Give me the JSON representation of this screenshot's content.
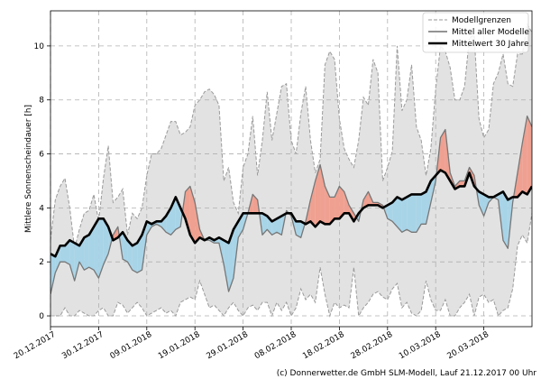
{
  "chart_data": {
    "type": "line",
    "ylabel": "Mittlere Sonnenscheindauer [h]",
    "xlabel": "",
    "ylim": [
      -0.4,
      11.3
    ],
    "x_days": 101,
    "yticks": [
      0,
      2,
      4,
      6,
      8,
      10
    ],
    "xticks": [
      {
        "day": 0,
        "label": "20.12.2017"
      },
      {
        "day": 10,
        "label": "30.12.2017"
      },
      {
        "day": 20,
        "label": "09.01.2018"
      },
      {
        "day": 30,
        "label": "19.01.2018"
      },
      {
        "day": 40,
        "label": "29.01.2018"
      },
      {
        "day": 50,
        "label": "08.02.2018"
      },
      {
        "day": 60,
        "label": "18.02.2018"
      },
      {
        "day": 70,
        "label": "28.02.2018"
      },
      {
        "day": 80,
        "label": "10.03.2018"
      },
      {
        "day": 90,
        "label": "20.03.2018"
      }
    ],
    "grid": true,
    "legend": {
      "position": "top-right",
      "entries": [
        "Modellgrenzen",
        "Mittel aller Modelle",
        "Mittelwert 30 Jahre"
      ]
    },
    "series": [
      {
        "name": "Modellgrenzen (max)",
        "x": [
          0,
          1,
          2,
          3,
          4,
          5,
          6,
          7,
          8,
          9,
          10,
          11,
          12,
          13,
          14,
          15,
          16,
          17,
          18,
          19,
          20,
          21,
          22,
          23,
          24,
          25,
          26,
          27,
          28,
          29,
          30,
          31,
          32,
          33,
          34,
          35,
          36,
          37,
          38,
          39,
          40,
          41,
          42,
          43,
          44,
          45,
          46,
          47,
          48,
          49,
          50,
          51,
          52,
          53,
          54,
          55,
          56,
          57,
          58,
          59,
          60,
          61,
          62,
          63,
          64,
          65,
          66,
          67,
          68,
          69,
          70,
          71,
          72,
          73,
          74,
          75,
          76,
          77,
          78,
          79,
          80,
          81,
          82,
          83,
          84,
          85,
          86,
          87,
          88,
          89,
          90,
          91,
          92,
          93,
          94,
          95,
          96,
          97,
          98,
          99,
          100
        ],
        "y": [
          2.8,
          4.3,
          4.8,
          5.1,
          4.0,
          2.5,
          3.2,
          3.8,
          3.9,
          4.5,
          3.5,
          5.1,
          6.3,
          4.2,
          4.4,
          4.7,
          3.0,
          3.8,
          3.6,
          4.0,
          5.2,
          6.0,
          6.0,
          6.2,
          6.7,
          7.2,
          7.2,
          6.7,
          6.8,
          7.0,
          7.8,
          8.0,
          8.3,
          8.4,
          8.2,
          7.8,
          5.0,
          5.5,
          4.2,
          3.8,
          5.5,
          6.0,
          7.4,
          5.2,
          6.5,
          8.3,
          6.5,
          7.5,
          8.5,
          8.6,
          6.5,
          6.0,
          7.5,
          8.5,
          6.5,
          5.3,
          5.8,
          9.3,
          9.8,
          9.5,
          7.3,
          6.2,
          5.8,
          5.5,
          6.5,
          8.1,
          7.8,
          9.5,
          9.0,
          5.0,
          5.5,
          6.1,
          10.0,
          7.6,
          8.0,
          9.3,
          7.0,
          6.5,
          5.2,
          6.2,
          8.4,
          10.0,
          9.8,
          9.2,
          8.0,
          8.0,
          8.5,
          10.3,
          10.4,
          7.3,
          6.6,
          6.9,
          8.6,
          9.0,
          9.7,
          8.6,
          8.5,
          9.7,
          9.7,
          10.8,
          10.5
        ]
      },
      {
        "name": "Modellgrenzen (min)",
        "x": [
          0,
          1,
          2,
          3,
          4,
          5,
          6,
          7,
          8,
          9,
          10,
          11,
          12,
          13,
          14,
          15,
          16,
          17,
          18,
          19,
          20,
          21,
          22,
          23,
          24,
          25,
          26,
          27,
          28,
          29,
          30,
          31,
          32,
          33,
          34,
          35,
          36,
          37,
          38,
          39,
          40,
          41,
          42,
          43,
          44,
          45,
          46,
          47,
          48,
          49,
          50,
          51,
          52,
          53,
          54,
          55,
          56,
          57,
          58,
          59,
          60,
          61,
          62,
          63,
          64,
          65,
          66,
          67,
          68,
          69,
          70,
          71,
          72,
          73,
          74,
          75,
          76,
          77,
          78,
          79,
          80,
          81,
          82,
          83,
          84,
          85,
          86,
          87,
          88,
          89,
          90,
          91,
          92,
          93,
          94,
          95,
          96,
          97,
          98,
          99,
          100
        ],
        "y": [
          0.0,
          0.0,
          0.0,
          0.3,
          0.0,
          0.0,
          0.2,
          0.1,
          0.0,
          0.0,
          0.2,
          0.3,
          0.0,
          0.0,
          0.5,
          0.4,
          0.1,
          0.3,
          0.5,
          0.3,
          0.0,
          0.1,
          0.2,
          0.3,
          0.1,
          0.2,
          0.0,
          0.5,
          0.6,
          0.7,
          0.6,
          1.3,
          0.8,
          0.3,
          0.4,
          0.2,
          0.0,
          0.3,
          0.5,
          0.2,
          0.0,
          0.3,
          0.4,
          0.2,
          0.5,
          0.5,
          0.0,
          0.5,
          0.2,
          0.5,
          0.0,
          0.3,
          1.0,
          0.6,
          0.8,
          0.5,
          1.8,
          0.8,
          0.0,
          0.5,
          0.3,
          0.4,
          0.3,
          1.8,
          0.0,
          0.3,
          0.5,
          0.8,
          0.9,
          0.7,
          0.6,
          1.0,
          1.2,
          0.3,
          0.5,
          0.1,
          0.0,
          0.2,
          1.3,
          0.6,
          0.2,
          0.2,
          0.6,
          0.0,
          0.0,
          0.3,
          0.5,
          0.8,
          0.0,
          0.7,
          0.8,
          0.5,
          0.6,
          0.0,
          0.2,
          0.3,
          1.0,
          2.6,
          3.0,
          2.7,
          3.8
        ]
      },
      {
        "name": "Mittel aller Modelle",
        "x": [
          0,
          1,
          2,
          3,
          4,
          5,
          6,
          7,
          8,
          9,
          10,
          11,
          12,
          13,
          14,
          15,
          16,
          17,
          18,
          19,
          20,
          21,
          22,
          23,
          24,
          25,
          26,
          27,
          28,
          29,
          30,
          31,
          32,
          33,
          34,
          35,
          36,
          37,
          38,
          39,
          40,
          41,
          42,
          43,
          44,
          45,
          46,
          47,
          48,
          49,
          50,
          51,
          52,
          53,
          54,
          55,
          56,
          57,
          58,
          59,
          60,
          61,
          62,
          63,
          64,
          65,
          66,
          67,
          68,
          69,
          70,
          71,
          72,
          73,
          74,
          75,
          76,
          77,
          78,
          79,
          80,
          81,
          82,
          83,
          84,
          85,
          86,
          87,
          88,
          89,
          90,
          91,
          92,
          93,
          94,
          95,
          96,
          97,
          98,
          99,
          100
        ],
        "y": [
          0.8,
          1.6,
          2.0,
          2.0,
          1.9,
          1.3,
          2.0,
          1.7,
          1.8,
          1.7,
          1.4,
          1.9,
          2.3,
          3.0,
          3.3,
          2.1,
          2.0,
          1.7,
          1.6,
          1.7,
          3.0,
          3.3,
          3.4,
          3.3,
          3.1,
          3.0,
          3.2,
          3.3,
          4.6,
          4.8,
          4.2,
          3.2,
          2.8,
          2.8,
          2.7,
          2.7,
          1.9,
          0.9,
          1.4,
          2.9,
          3.2,
          3.8,
          4.5,
          4.3,
          3.0,
          3.2,
          3.0,
          3.1,
          3.0,
          3.9,
          3.7,
          3.0,
          2.9,
          3.5,
          4.3,
          5.0,
          5.6,
          4.8,
          4.4,
          4.4,
          4.8,
          4.6,
          4.1,
          3.8,
          3.5,
          4.3,
          4.6,
          4.2,
          4.2,
          4.1,
          3.6,
          3.5,
          3.3,
          3.1,
          3.2,
          3.1,
          3.1,
          3.4,
          3.4,
          4.2,
          5.0,
          6.6,
          6.9,
          5.3,
          4.8,
          5.0,
          5.0,
          5.5,
          5.2,
          4.1,
          3.7,
          4.2,
          4.4,
          4.3,
          2.8,
          2.5,
          4.2,
          5.3,
          6.4,
          7.4,
          7.0
        ]
      },
      {
        "name": "Mittelwert 30 Jahre",
        "x": [
          0,
          1,
          2,
          3,
          4,
          5,
          6,
          7,
          8,
          9,
          10,
          11,
          12,
          13,
          14,
          15,
          16,
          17,
          18,
          19,
          20,
          21,
          22,
          23,
          24,
          25,
          26,
          27,
          28,
          29,
          30,
          31,
          32,
          33,
          34,
          35,
          36,
          37,
          38,
          39,
          40,
          41,
          42,
          43,
          44,
          45,
          46,
          47,
          48,
          49,
          50,
          51,
          52,
          53,
          54,
          55,
          56,
          57,
          58,
          59,
          60,
          61,
          62,
          63,
          64,
          65,
          66,
          67,
          68,
          69,
          70,
          71,
          72,
          73,
          74,
          75,
          76,
          77,
          78,
          79,
          80,
          81,
          82,
          83,
          84,
          85,
          86,
          87,
          88,
          89,
          90,
          91,
          92,
          93,
          94,
          95,
          96,
          97,
          98,
          99,
          100
        ],
        "y": [
          2.3,
          2.2,
          2.6,
          2.6,
          2.8,
          2.7,
          2.6,
          2.9,
          3.0,
          3.3,
          3.6,
          3.6,
          3.3,
          2.8,
          2.9,
          3.1,
          2.8,
          2.6,
          2.7,
          3.0,
          3.5,
          3.4,
          3.5,
          3.5,
          3.7,
          4.0,
          4.4,
          4.0,
          3.6,
          3.0,
          2.7,
          2.9,
          2.8,
          2.9,
          2.8,
          2.9,
          2.8,
          2.7,
          3.2,
          3.5,
          3.8,
          3.8,
          3.8,
          3.8,
          3.8,
          3.7,
          3.5,
          3.6,
          3.7,
          3.8,
          3.8,
          3.5,
          3.5,
          3.4,
          3.5,
          3.3,
          3.5,
          3.4,
          3.4,
          3.6,
          3.6,
          3.8,
          3.8,
          3.5,
          3.8,
          4.0,
          4.1,
          4.1,
          4.1,
          4.0,
          4.1,
          4.2,
          4.4,
          4.3,
          4.4,
          4.5,
          4.5,
          4.5,
          4.6,
          5.0,
          5.2,
          5.4,
          5.3,
          5.0,
          4.7,
          4.8,
          4.8,
          5.3,
          4.8,
          4.6,
          4.5,
          4.4,
          4.4,
          4.5,
          4.6,
          4.3,
          4.4,
          4.4,
          4.6,
          4.5,
          4.8
        ]
      }
    ]
  },
  "footer": {
    "credit": "(c) Donnerwetter.de GmbH SLM-Modell, Lauf 21.12.2017 00 Uhr"
  },
  "colors": {
    "envelope_fill": "#e2e2e2",
    "envelope_line": "#9a9a9a",
    "model_mean": "#777777",
    "climate_mean": "#000000",
    "above_fill": "#f0a090",
    "below_fill": "#a8d4e8",
    "grid": "#b0b0b0"
  }
}
